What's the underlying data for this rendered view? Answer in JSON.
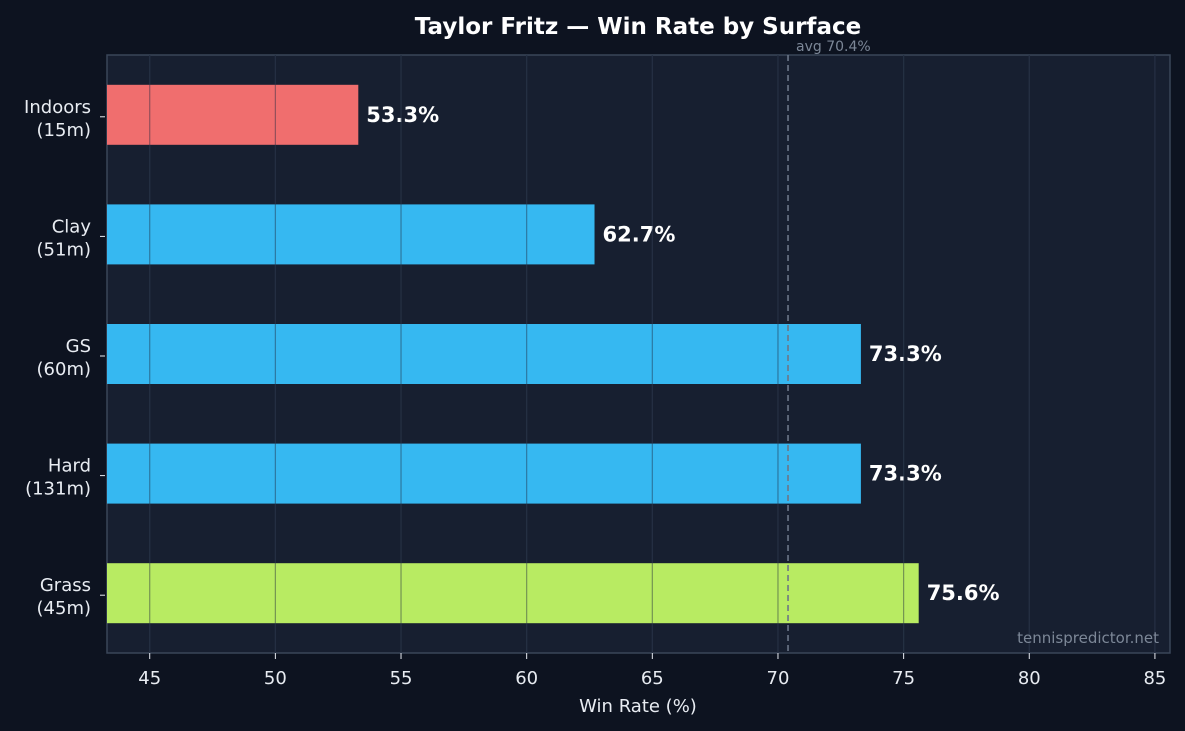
{
  "chart_data": {
    "type": "bar",
    "orientation": "horizontal",
    "title": "Taylor Fritz — Win Rate by Surface",
    "xlabel": "Win Rate (%)",
    "ylabel": "",
    "xlim": [
      43.3,
      85.6
    ],
    "xticks": [
      45,
      50,
      55,
      60,
      65,
      70,
      75,
      80,
      85
    ],
    "grid": true,
    "categories": [
      {
        "name": "Indoors",
        "count": "(15m)"
      },
      {
        "name": "Clay",
        "count": "(51m)"
      },
      {
        "name": "GS",
        "count": "(60m)"
      },
      {
        "name": "Hard",
        "count": "(131m)"
      },
      {
        "name": "Grass",
        "count": "(45m)"
      }
    ],
    "values": [
      53.3,
      62.7,
      73.3,
      73.3,
      75.6
    ],
    "value_labels": [
      "53.3%",
      "62.7%",
      "73.3%",
      "73.3%",
      "75.6%"
    ],
    "bar_colors": [
      "#f87171",
      "#38bdf8",
      "#38bdf8",
      "#38bdf8",
      "#bef264"
    ],
    "reference_line": {
      "value": 70.4,
      "label": "avg 70.4%"
    },
    "watermark": "tennispredictor.net",
    "colors": {
      "background": "#0d1320",
      "plot_background": "#171f30",
      "grid": "#2a3548",
      "spine": "#3a4659",
      "text": "#ffffff"
    }
  }
}
